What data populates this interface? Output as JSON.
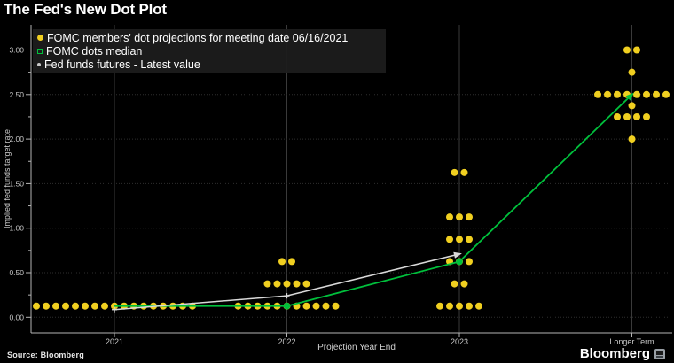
{
  "title": "The Fed's New Dot Plot",
  "legend": {
    "items": [
      {
        "label": "FOMC members' dot projections for meeting date 06/16/2021",
        "marker": "filled-circle",
        "color": "#f0cf20"
      },
      {
        "label": "FOMC dots median",
        "marker": "hollow-square",
        "color": "#00c03c"
      },
      {
        "label": "Fed funds futures - Latest value",
        "marker": "small-dot",
        "color": "#c8c8c8"
      }
    ]
  },
  "footer": {
    "source": "Source: Bloomberg",
    "brand": "Bloomberg"
  },
  "colors": {
    "background": "#000000",
    "dot_yellow": "#f0cf20",
    "median_green": "#00c03c",
    "futures_white": "#d9d9d9",
    "grid_horizontal": "#2e2e2e",
    "grid_vertical": "#3a3a3a",
    "axis": "#b4b4b4",
    "tick_label": "#c8c8c8"
  },
  "chart_data": {
    "type": "scatter",
    "title": "The Fed's New Dot Plot",
    "xlabel": "Projection Year End",
    "ylabel": "Implied fed funds target rate",
    "x_categories": [
      "2021",
      "2022",
      "2023",
      "Longer Term"
    ],
    "y_ticks": [
      0.0,
      0.5,
      1.0,
      1.5,
      2.0,
      2.5,
      3.0
    ],
    "ylim": [
      -0.17,
      3.28
    ],
    "grid": "dotted horizontal lines at 0.50 steps, solid vertical category lines",
    "legend_position": "top-left",
    "dot_groups": [
      {
        "category": "2021",
        "value": 0.125,
        "count": 17
      },
      {
        "category": "2022",
        "value": 0.125,
        "count": 11
      },
      {
        "category": "2022",
        "value": 0.375,
        "count": 5
      },
      {
        "category": "2022",
        "value": 0.625,
        "count": 2
      },
      {
        "category": "2023",
        "value": 0.125,
        "count": 5
      },
      {
        "category": "2023",
        "value": 0.375,
        "count": 2
      },
      {
        "category": "2023",
        "value": 0.625,
        "count": 3
      },
      {
        "category": "2023",
        "value": 0.875,
        "count": 3
      },
      {
        "category": "2023",
        "value": 1.125,
        "count": 3
      },
      {
        "category": "2023",
        "value": 1.625,
        "count": 2
      },
      {
        "category": "Longer Term",
        "value": 2.0,
        "count": 1
      },
      {
        "category": "Longer Term",
        "value": 2.25,
        "count": 4
      },
      {
        "category": "Longer Term",
        "value": 2.375,
        "count": 1
      },
      {
        "category": "Longer Term",
        "value": 2.5,
        "count": 8
      },
      {
        "category": "Longer Term",
        "value": 2.75,
        "count": 1
      },
      {
        "category": "Longer Term",
        "value": 3.0,
        "count": 2
      }
    ],
    "lines": [
      {
        "name": "FOMC dots median",
        "color": "#00c03c",
        "marker": "dot",
        "arrow_end": true,
        "points": [
          [
            "2021",
            0.125
          ],
          [
            "2022",
            0.125
          ],
          [
            "2023",
            0.625
          ],
          [
            "Longer Term",
            2.5
          ]
        ]
      },
      {
        "name": "Fed funds futures - Latest value",
        "color": "#d9d9d9",
        "marker": "cross",
        "arrow_end": true,
        "points": [
          [
            "2021",
            0.085
          ],
          [
            "2022",
            0.24
          ],
          [
            "2023",
            0.71
          ]
        ]
      }
    ]
  }
}
